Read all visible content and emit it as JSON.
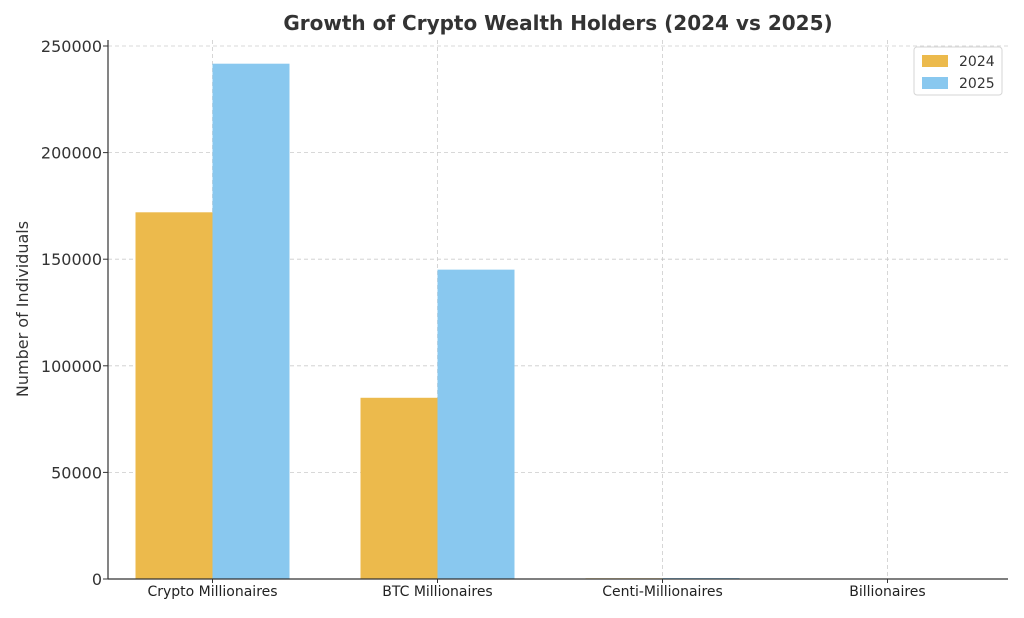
{
  "chart_data": {
    "type": "bar",
    "title": "Growth of Crypto Wealth Holders (2024 vs 2025)",
    "xlabel": "",
    "ylabel": "Number of Individuals",
    "categories": [
      "Crypto Millionaires",
      "BTC Millionaires",
      "Centi-Millionaires",
      "Billionaires"
    ],
    "series": [
      {
        "name": "2024",
        "values": [
          172000,
          85000,
          325,
          28
        ],
        "color": "#ECBA4C"
      },
      {
        "name": "2025",
        "values": [
          241700,
          145100,
          450,
          40
        ],
        "color": "#89C8EF"
      }
    ],
    "ylim": [
      0,
      250000
    ],
    "yticks": [
      0,
      50000,
      100000,
      150000,
      200000,
      250000
    ],
    "ytick_labels": [
      "0",
      "50000",
      "100000",
      "150000",
      "200000",
      "250000"
    ],
    "grid": true,
    "legend_position": "top-right"
  }
}
